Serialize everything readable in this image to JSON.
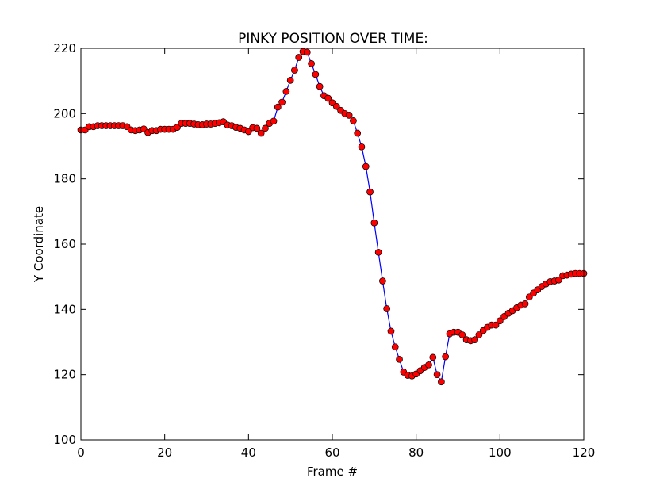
{
  "chart_data": {
    "type": "line",
    "title": "PINKY POSITION OVER TIME:",
    "xlabel": "Frame #",
    "ylabel": "Y Coordinate",
    "xlim": [
      0,
      120
    ],
    "ylim": [
      100,
      220
    ],
    "xticks": [
      0,
      20,
      40,
      60,
      80,
      100,
      120
    ],
    "yticks": [
      100,
      120,
      140,
      160,
      180,
      200,
      220
    ],
    "grid": false,
    "line_color": "#0000ff",
    "marker_color": "#ff0000",
    "marker_edge_color": "#000000",
    "series": [
      {
        "x": [
          0,
          1,
          2,
          3,
          4,
          5,
          6,
          7,
          8,
          9,
          10,
          11,
          12,
          13,
          14,
          15,
          16,
          17,
          18,
          19,
          20,
          21,
          22,
          23,
          24,
          25,
          26,
          27,
          28,
          29,
          30,
          31,
          32,
          33,
          34,
          35,
          36,
          37,
          38,
          39,
          40,
          41,
          42,
          43,
          44,
          45,
          46,
          47,
          48,
          49,
          50,
          51,
          52,
          53,
          54,
          55,
          56,
          57,
          58,
          59,
          60,
          61,
          62,
          63,
          64,
          65,
          66,
          67,
          68,
          69,
          70,
          71,
          72,
          73,
          74,
          75,
          76,
          77,
          78,
          79,
          80,
          81,
          82,
          83,
          84,
          85,
          86,
          87,
          88,
          89,
          90,
          91,
          92,
          93,
          94,
          95,
          96,
          97,
          98,
          99,
          100,
          101,
          102,
          103,
          104,
          105,
          106,
          107,
          108,
          109,
          110,
          111,
          112,
          113,
          114,
          115,
          116,
          117,
          118,
          119,
          120
        ],
        "y": [
          195,
          195,
          196,
          196,
          196.3,
          196.3,
          196.3,
          196.3,
          196.3,
          196.3,
          196.3,
          196,
          195,
          194.8,
          195,
          195.3,
          194.2,
          194.8,
          194.8,
          195.2,
          195.2,
          195.2,
          195.2,
          195.8,
          197,
          197,
          197,
          196.8,
          196.6,
          196.6,
          196.8,
          196.8,
          197,
          197.2,
          197.5,
          196.5,
          196.3,
          195.8,
          195.5,
          195,
          194.5,
          195.7,
          195.5,
          194,
          195.5,
          197,
          197.7,
          202,
          203.5,
          206.8,
          210.2,
          213.3,
          217.2,
          219,
          218.8,
          215.3,
          212,
          208.3,
          205.5,
          204.7,
          203.3,
          202.2,
          201,
          200,
          199.5,
          197.8,
          194,
          189.8,
          183.8,
          176,
          166.5,
          157.5,
          148.7,
          140.2,
          133.3,
          128.5,
          124.7,
          120.8,
          119.8,
          119.6,
          120.2,
          121.2,
          122.2,
          123,
          125.3,
          120,
          117.8,
          125.5,
          132.5,
          133,
          133,
          132.2,
          130.7,
          130.4,
          130.7,
          132.2,
          133.5,
          134.5,
          135.2,
          135.2,
          136.5,
          137.8,
          138.8,
          139.6,
          140.5,
          141.3,
          141.7,
          143.8,
          145,
          146,
          147,
          147.8,
          148.5,
          148.7,
          149,
          150.3,
          150.5,
          150.8,
          151,
          151,
          151
        ]
      }
    ]
  }
}
